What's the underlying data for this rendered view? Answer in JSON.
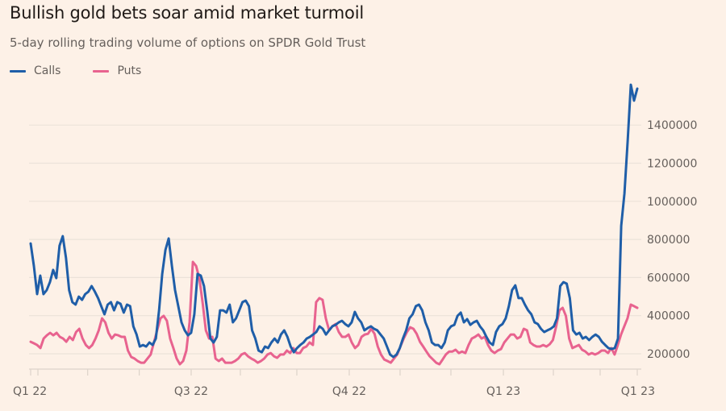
{
  "header": {
    "title": "Bullish gold bets soar amid market turmoil",
    "subtitle": "5-day rolling trading volume of options on SPDR Gold Trust"
  },
  "colors": {
    "background": "#fdf1e7",
    "calls": "#1f5ea8",
    "puts": "#e8638f",
    "grid": "#ece2d9",
    "axis": "#ddd3ca"
  },
  "chart_data": {
    "type": "line",
    "title": "Bullish gold bets soar amid market turmoil",
    "subtitle": "5-day rolling trading volume of options on SPDR Gold Trust",
    "xlabel": "",
    "ylabel": "",
    "ylim": [
      120000,
      1650000
    ],
    "y_ticks": [
      200000,
      400000,
      600000,
      800000,
      1000000,
      1200000,
      1400000
    ],
    "y_tick_labels": [
      "200000",
      "400000",
      "600000",
      "800000",
      "1000000",
      "1200000",
      "1400000"
    ],
    "x_tick_labels": [
      {
        "label": "Q1 22",
        "pos": 0.0
      },
      {
        "label": "Q3 22",
        "pos": 0.2646
      },
      {
        "label": "Q4 22",
        "pos": 0.5252
      },
      {
        "label": "Q1 23",
        "pos": 0.7793
      },
      {
        "label": "Q1 23",
        "pos": 1.0
      }
    ],
    "x_minor_ticks": [
      0.0,
      0.012,
      0.094,
      0.179,
      0.2646,
      0.3457,
      0.4388,
      0.5252,
      0.609,
      0.6928,
      0.7793,
      0.8617,
      0.9388,
      1.0
    ],
    "grid": true,
    "legend": "top-left",
    "series": [
      {
        "name": "Calls",
        "values": [
          779000,
          661000,
          513000,
          610000,
          513000,
          534000,
          576000,
          640000,
          597000,
          767000,
          817000,
          703000,
          534000,
          471000,
          458000,
          500000,
          483000,
          513000,
          526000,
          555000,
          526000,
          492000,
          450000,
          407000,
          458000,
          471000,
          428000,
          471000,
          462000,
          416000,
          458000,
          450000,
          344000,
          301000,
          238000,
          246000,
          238000,
          259000,
          246000,
          280000,
          428000,
          619000,
          745000,
          805000,
          661000,
          534000,
          450000,
          365000,
          323000,
          297000,
          310000,
          407000,
          619000,
          610000,
          555000,
          428000,
          280000,
          259000,
          289000,
          428000,
          428000,
          416000,
          458000,
          365000,
          386000,
          428000,
          471000,
          479000,
          450000,
          323000,
          280000,
          217000,
          208000,
          238000,
          230000,
          259000,
          280000,
          259000,
          301000,
          323000,
          289000,
          238000,
          208000,
          230000,
          246000,
          259000,
          280000,
          289000,
          301000,
          314000,
          344000,
          331000,
          301000,
          323000,
          344000,
          352000,
          365000,
          373000,
          356000,
          344000,
          365000,
          420000,
          386000,
          365000,
          323000,
          335000,
          344000,
          331000,
          323000,
          301000,
          280000,
          238000,
          196000,
          183000,
          196000,
          230000,
          280000,
          323000,
          386000,
          407000,
          450000,
          458000,
          428000,
          365000,
          323000,
          259000,
          246000,
          246000,
          230000,
          259000,
          323000,
          344000,
          352000,
          399000,
          416000,
          365000,
          382000,
          352000,
          365000,
          373000,
          344000,
          323000,
          289000,
          259000,
          246000,
          314000,
          344000,
          356000,
          386000,
          450000,
          534000,
          559000,
          492000,
          492000,
          458000,
          428000,
          407000,
          365000,
          356000,
          331000,
          314000,
          323000,
          331000,
          344000,
          386000,
          555000,
          576000,
          568000,
          492000,
          323000,
          301000,
          310000,
          280000,
          289000,
          272000,
          289000,
          301000,
          289000,
          263000,
          246000,
          230000,
          225000,
          230000,
          280000,
          872000,
          1041000,
          1316000,
          1612000,
          1528000,
          1591000
        ]
      },
      {
        "name": "Puts",
        "values": [
          263000,
          255000,
          246000,
          230000,
          280000,
          297000,
          310000,
          297000,
          310000,
          289000,
          280000,
          263000,
          289000,
          272000,
          314000,
          331000,
          280000,
          246000,
          230000,
          246000,
          280000,
          323000,
          386000,
          365000,
          310000,
          280000,
          301000,
          297000,
          289000,
          289000,
          217000,
          183000,
          175000,
          162000,
          153000,
          153000,
          175000,
          196000,
          259000,
          323000,
          386000,
          399000,
          373000,
          280000,
          230000,
          175000,
          145000,
          162000,
          217000,
          365000,
          682000,
          661000,
          597000,
          471000,
          323000,
          280000,
          289000,
          175000,
          162000,
          175000,
          153000,
          153000,
          153000,
          162000,
          175000,
          196000,
          204000,
          187000,
          175000,
          166000,
          153000,
          162000,
          175000,
          196000,
          204000,
          187000,
          179000,
          196000,
          196000,
          217000,
          204000,
          230000,
          204000,
          204000,
          230000,
          238000,
          259000,
          246000,
          471000,
          492000,
          483000,
          386000,
          323000,
          344000,
          356000,
          314000,
          289000,
          289000,
          301000,
          259000,
          230000,
          246000,
          289000,
          301000,
          305000,
          331000,
          305000,
          238000,
          196000,
          170000,
          162000,
          153000,
          175000,
          196000,
          238000,
          280000,
          314000,
          339000,
          331000,
          305000,
          263000,
          238000,
          212000,
          187000,
          170000,
          153000,
          145000,
          170000,
          196000,
          212000,
          212000,
          221000,
          204000,
          212000,
          204000,
          246000,
          280000,
          289000,
          301000,
          280000,
          289000,
          246000,
          217000,
          204000,
          217000,
          225000,
          259000,
          280000,
          301000,
          301000,
          280000,
          289000,
          331000,
          323000,
          259000,
          246000,
          238000,
          238000,
          246000,
          238000,
          250000,
          272000,
          344000,
          428000,
          441000,
          399000,
          280000,
          230000,
          238000,
          246000,
          221000,
          212000,
          196000,
          204000,
          196000,
          204000,
          217000,
          217000,
          204000,
          230000,
          196000,
          246000,
          301000,
          344000,
          386000,
          458000,
          450000,
          441000
        ]
      }
    ]
  }
}
